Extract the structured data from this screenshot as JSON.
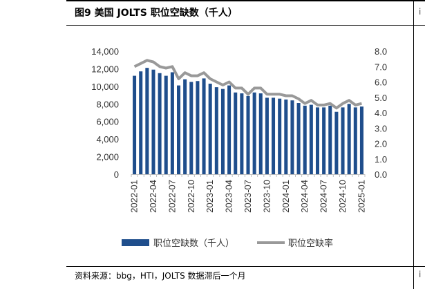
{
  "header": {
    "title": "图9   美国 JOLTS 职位空缺数（千人）"
  },
  "source_note": "资料来源：bbg，HTI，JOLTS 数据滞后一个月",
  "edge_glyphs": {
    "top": "i",
    "bottom": "i"
  },
  "chart_data": {
    "type": "bar",
    "title": "",
    "xlabel": "",
    "ylabel": "",
    "x": [
      "2022-01",
      "2022-02",
      "2022-03",
      "2022-04",
      "2022-05",
      "2022-06",
      "2022-07",
      "2022-08",
      "2022-09",
      "2022-10",
      "2022-11",
      "2022-12",
      "2023-01",
      "2023-02",
      "2023-03",
      "2023-04",
      "2023-05",
      "2023-06",
      "2023-07",
      "2023-08",
      "2023-09",
      "2023-10",
      "2023-11",
      "2023-12",
      "2024-01",
      "2024-02",
      "2024-03",
      "2024-04",
      "2024-05",
      "2024-06",
      "2024-07",
      "2024-08",
      "2024-09",
      "2024-10",
      "2024-11",
      "2024-12",
      "2025-01"
    ],
    "x_tick_labels": [
      "2022-01",
      "2022-04",
      "2022-07",
      "2022-10",
      "2023-01",
      "2023-04",
      "2023-07",
      "2023-10",
      "2024-01",
      "2024-04",
      "2024-07",
      "2024-10",
      "2025-01"
    ],
    "y_left": {
      "ylim": [
        0,
        14000
      ],
      "ticks": [
        "0",
        "2,000",
        "4,000",
        "6,000",
        "8,000",
        "10,000",
        "12,000",
        "14,000"
      ]
    },
    "y_right": {
      "ylim": [
        0.0,
        8.0
      ],
      "ticks": [
        "0.0",
        "1.0",
        "2.0",
        "3.0",
        "4.0",
        "5.0",
        "6.0",
        "7.0",
        "8.0"
      ]
    },
    "series": [
      {
        "name": "职位空缺数（千人）",
        "type": "bar",
        "axis": "left",
        "color": "#1F4E8C",
        "values": [
          11200,
          11700,
          12100,
          11900,
          11500,
          11200,
          11600,
          10100,
          10800,
          10500,
          10600,
          10900,
          10300,
          9900,
          9700,
          10100,
          9300,
          9200,
          8900,
          9300,
          9200,
          8700,
          8700,
          8600,
          8500,
          8400,
          8100,
          7800,
          7900,
          7600,
          7600,
          7800,
          7100,
          7600,
          8000,
          7600,
          7700
        ]
      },
      {
        "name": "职位空缺率",
        "type": "line",
        "axis": "right",
        "color": "#999999",
        "values": [
          7.0,
          7.2,
          7.4,
          7.3,
          7.0,
          6.9,
          7.0,
          6.2,
          6.6,
          6.4,
          6.4,
          6.6,
          6.2,
          6.0,
          5.8,
          6.0,
          5.6,
          5.6,
          5.2,
          5.6,
          5.6,
          5.2,
          5.2,
          5.2,
          5.1,
          5.1,
          4.9,
          4.6,
          4.8,
          4.5,
          4.5,
          4.6,
          4.3,
          4.6,
          4.8,
          4.5,
          4.6
        ]
      }
    ],
    "legend": {
      "position": "bottom"
    },
    "grid": false
  }
}
